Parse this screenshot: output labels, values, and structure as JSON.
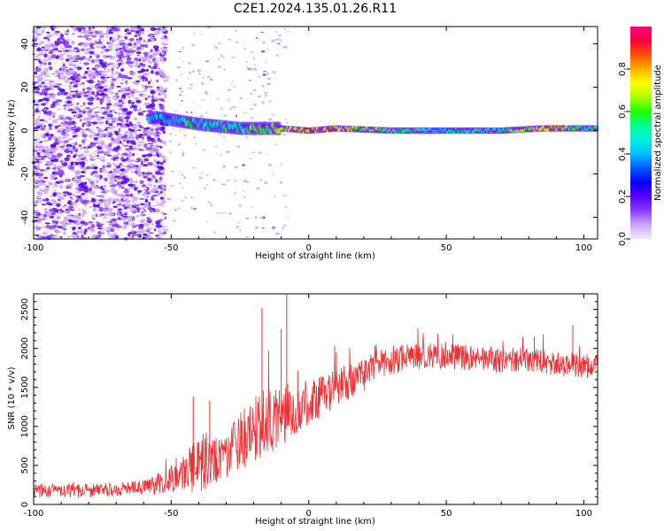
{
  "figure": {
    "title": "C2E1.2024.135.01.26.R11"
  },
  "chart_data": [
    {
      "type": "heatmap",
      "xlabel": "Height of straight line (km)",
      "ylabel": "Frequency (Hz)",
      "xlim": [
        -100,
        105
      ],
      "ylim": [
        -50,
        48
      ],
      "xticks": [
        -100,
        -50,
        0,
        50,
        100
      ],
      "yticks": [
        -40,
        -20,
        0,
        20,
        40
      ],
      "colorbar": {
        "label": "Normalized spectral amplitude",
        "range": [
          0,
          1
        ],
        "ticks": [
          0.0,
          0.2,
          0.4,
          0.6,
          0.8
        ],
        "colors": [
          "#f3eaff",
          "#cba6ff",
          "#8a3cff",
          "#5a00ff",
          "#0a00ff",
          "#0058ff",
          "#00bfff",
          "#00f0e0",
          "#00ff90",
          "#20ff00",
          "#aaff00",
          "#ffff00",
          "#ffb000",
          "#ff5000",
          "#ff0040",
          "#ff0080"
        ]
      },
      "description_points": [
        {
          "x": -55,
          "freq": 6,
          "amp": 0.45
        },
        {
          "x": -40,
          "freq": 3,
          "amp": 0.55
        },
        {
          "x": -25,
          "freq": 1,
          "amp": 0.55
        },
        {
          "x": -10,
          "freq": 1,
          "amp": 0.75
        },
        {
          "x": 0,
          "freq": 0,
          "amp": 0.9
        },
        {
          "x": 10,
          "freq": 1,
          "amp": 0.85
        },
        {
          "x": 30,
          "freq": 0,
          "amp": 0.6
        },
        {
          "x": 50,
          "freq": 0,
          "amp": 0.5
        },
        {
          "x": 70,
          "freq": 0,
          "amp": 0.55
        },
        {
          "x": 85,
          "freq": 1,
          "amp": 0.85
        },
        {
          "x": 100,
          "freq": 1,
          "amp": 0.6
        }
      ]
    },
    {
      "type": "line",
      "xlabel": "Height of straight line (km)",
      "ylabel": "SNR (10 * v/v)",
      "xlim": [
        -100,
        105
      ],
      "ylim": [
        0,
        2700
      ],
      "xticks": [
        -100,
        -50,
        0,
        50,
        100
      ],
      "yticks": [
        0,
        500,
        1000,
        1500,
        2000,
        2500
      ],
      "series": [
        {
          "color": "#f03030",
          "trend": {
            "x": [
              -100,
              -90,
              -80,
              -70,
              -60,
              -55,
              -50,
              -45,
              -40,
              -35,
              -30,
              -25,
              -20,
              -15,
              -10,
              -5,
              0,
              5,
              10,
              15,
              20,
              25,
              30,
              40,
              50,
              60,
              70,
              80,
              90,
              100,
              105
            ],
            "y": [
              180,
              170,
              175,
              190,
              220,
              260,
              330,
              420,
              500,
              540,
              620,
              800,
              950,
              1050,
              1150,
              1200,
              1300,
              1400,
              1500,
              1580,
              1650,
              1800,
              1850,
              1900,
              1900,
              1880,
              1850,
              1850,
              1800,
              1780,
              1760
            ]
          },
          "spread": {
            "x": [
              -100,
              -60,
              -50,
              -40,
              -30,
              -20,
              -10,
              0,
              20,
              40,
              105
            ],
            "y": [
              90,
              90,
              180,
              350,
              300,
              450,
              420,
              300,
              200,
              170,
              160
            ]
          },
          "peaks": [
            {
              "x": -42,
              "y": 1380
            },
            {
              "x": -36,
              "y": 1330
            },
            {
              "x": -17,
              "y": 2520
            },
            {
              "x": -8,
              "y": 2700
            },
            {
              "x": -10,
              "y": 2250
            },
            {
              "x": -4,
              "y": 1720
            },
            {
              "x": 10,
              "y": 1950
            },
            {
              "x": 82,
              "y": 2150
            },
            {
              "x": 96,
              "y": 2300
            }
          ]
        }
      ]
    }
  ]
}
